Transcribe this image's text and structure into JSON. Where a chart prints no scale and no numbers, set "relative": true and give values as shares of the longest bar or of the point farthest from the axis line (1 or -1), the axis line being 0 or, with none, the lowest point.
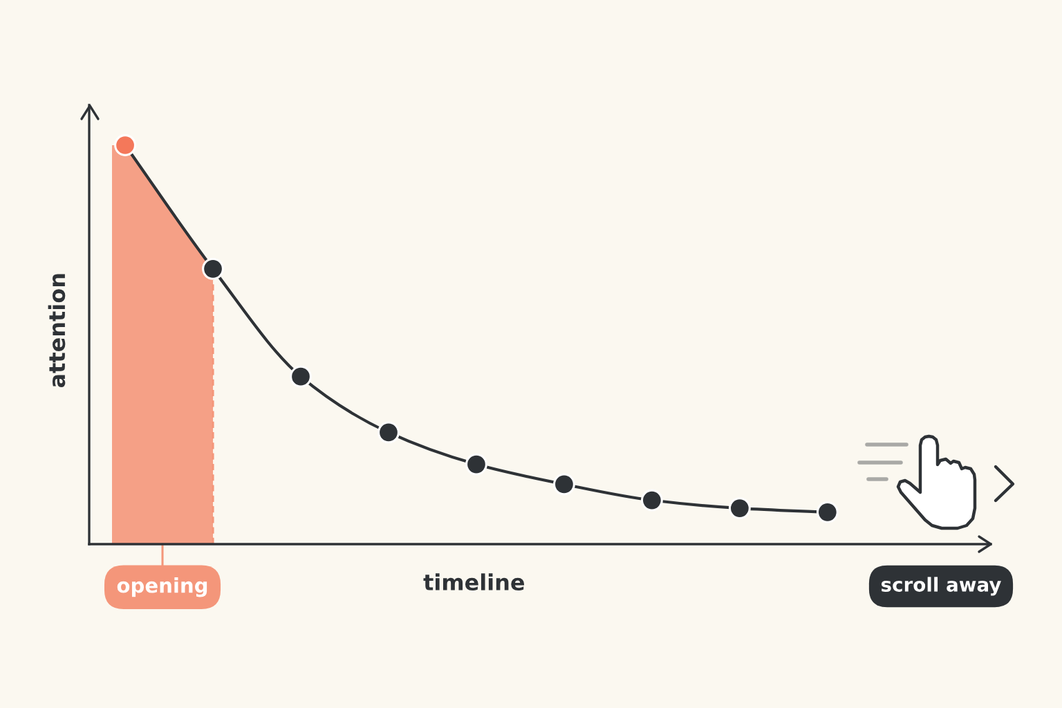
{
  "chart_data": {
    "type": "line",
    "xlabel": "timeline",
    "ylabel": "attention",
    "relative": true,
    "categories": [
      null,
      null,
      null,
      null,
      null,
      null,
      null,
      null,
      null
    ],
    "series": [
      {
        "color": "#2e3236",
        "colors": [
          "#f4785a",
          "#2e3236",
          "#2e3236",
          "#2e3236",
          "#2e3236",
          "#2e3236",
          "#2e3236",
          "#2e3236",
          "#2e3236"
        ],
        "values": [
          1,
          0.69,
          0.42,
          0.28,
          0.2,
          0.15,
          0.11,
          0.09,
          0.08
        ]
      }
    ],
    "marker": "circle",
    "line_style": "solid",
    "annotations": [
      "opening",
      "scroll away"
    ]
  }
}
